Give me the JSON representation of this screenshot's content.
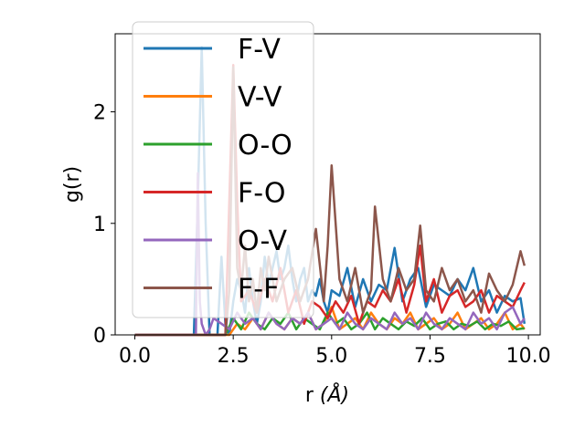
{
  "chart_data": {
    "type": "line",
    "xlabel": "r",
    "xlabel_unit": "(Å)",
    "ylabel": "g(r)",
    "xlim": [
      -0.5,
      10.3
    ],
    "ylim": [
      0,
      2.7
    ],
    "xticks": [
      0.0,
      2.5,
      5.0,
      7.5,
      10.0
    ],
    "xtick_labels": [
      "0.0",
      "2.5",
      "5.0",
      "7.5",
      "10.0"
    ],
    "yticks": [
      0,
      1,
      2
    ],
    "ytick_labels": [
      "0",
      "1",
      "2"
    ],
    "grid": false,
    "legend_position": "top-left",
    "series": [
      {
        "name": "F-V",
        "color": "#1f77b4",
        "x": [
          0,
          1.5,
          1.6,
          1.7,
          1.8,
          1.9,
          2.0,
          2.1,
          2.2,
          2.3,
          2.4,
          2.5,
          2.6,
          2.7,
          2.8,
          2.9,
          3.0,
          3.1,
          3.2,
          3.3,
          3.4,
          3.5,
          3.6,
          3.7,
          3.8,
          3.9,
          4.0,
          4.1,
          4.2,
          4.3,
          4.4,
          4.5,
          4.6,
          4.7,
          4.8,
          4.9,
          5.0,
          5.2,
          5.4,
          5.6,
          5.8,
          6.0,
          6.2,
          6.4,
          6.6,
          6.8,
          7.0,
          7.2,
          7.4,
          7.6,
          7.8,
          8.0,
          8.2,
          8.4,
          8.6,
          8.8,
          9.0,
          9.2,
          9.4,
          9.6,
          9.8,
          9.9
        ],
        "y": [
          0,
          0,
          1.2,
          2.58,
          1.0,
          0,
          0,
          0,
          0.7,
          0.1,
          0,
          0.3,
          0.5,
          0.4,
          0.2,
          0.6,
          0.3,
          0.1,
          0.3,
          0.7,
          0.45,
          0.6,
          0.75,
          0.5,
          0.6,
          0.8,
          0.5,
          0.3,
          0.5,
          0.6,
          0.3,
          0.4,
          0.35,
          0.5,
          0.3,
          0.2,
          0.4,
          0.35,
          0.6,
          0.25,
          0.5,
          0.3,
          0.45,
          0.4,
          0.78,
          0.3,
          0.5,
          0.6,
          0.25,
          0.45,
          0.4,
          0.35,
          0.5,
          0.4,
          0.6,
          0.3,
          0.4,
          0.2,
          0.35,
          0.3,
          0.33,
          0.1
        ]
      },
      {
        "name": "V-V",
        "color": "#ff7f0e",
        "x": [
          0,
          2.4,
          2.6,
          2.8,
          3.0,
          3.2,
          3.4,
          3.6,
          3.8,
          4.0,
          4.2,
          4.4,
          4.6,
          4.8,
          5.0,
          5.2,
          5.4,
          5.6,
          5.8,
          6.0,
          6.2,
          6.4,
          6.6,
          6.8,
          7.0,
          7.2,
          7.4,
          7.6,
          7.8,
          8.0,
          8.2,
          8.4,
          8.6,
          8.8,
          9.0,
          9.2,
          9.4,
          9.6,
          9.8,
          9.9
        ],
        "y": [
          0,
          0,
          0.1,
          0.05,
          0.15,
          0.05,
          0.2,
          0.1,
          0.05,
          0.15,
          0.1,
          0.2,
          0.05,
          0.1,
          0.25,
          0.05,
          0.1,
          0.15,
          0.05,
          0.2,
          0.1,
          0.05,
          0.15,
          0.1,
          0.2,
          0.05,
          0.1,
          0.15,
          0.05,
          0.1,
          0.2,
          0.05,
          0.1,
          0.15,
          0.05,
          0.1,
          0.2,
          0.05,
          0.1,
          0.05
        ]
      },
      {
        "name": "O-O",
        "color": "#2ca02c",
        "x": [
          0,
          2.3,
          2.5,
          2.7,
          2.9,
          3.1,
          3.3,
          3.5,
          3.7,
          3.9,
          4.1,
          4.3,
          4.5,
          4.7,
          4.9,
          5.1,
          5.3,
          5.5,
          5.7,
          5.9,
          6.1,
          6.3,
          6.5,
          6.7,
          6.9,
          7.1,
          7.3,
          7.5,
          7.7,
          7.9,
          8.1,
          8.3,
          8.5,
          8.7,
          8.9,
          9.1,
          9.3,
          9.5,
          9.7,
          9.9
        ],
        "y": [
          0,
          0,
          0.15,
          0.05,
          0.2,
          0.1,
          0.05,
          0.15,
          0.1,
          0.2,
          0.05,
          0.15,
          0.1,
          0.05,
          0.2,
          0.1,
          0.15,
          0.05,
          0.1,
          0.2,
          0.05,
          0.15,
          0.1,
          0.05,
          0.12,
          0.08,
          0.15,
          0.05,
          0.1,
          0.12,
          0.05,
          0.1,
          0.08,
          0.12,
          0.05,
          0.1,
          0.08,
          0.12,
          0.05,
          0.06
        ]
      },
      {
        "name": "F-O",
        "color": "#d62728",
        "x": [
          0,
          2.3,
          2.5,
          2.6,
          2.7,
          2.9,
          3.1,
          3.3,
          3.5,
          3.7,
          3.9,
          4.1,
          4.3,
          4.5,
          4.7,
          4.9,
          5.1,
          5.3,
          5.5,
          5.7,
          5.9,
          6.1,
          6.3,
          6.5,
          6.7,
          6.9,
          7.1,
          7.25,
          7.4,
          7.6,
          7.8,
          8.0,
          8.2,
          8.4,
          8.6,
          8.8,
          9.0,
          9.2,
          9.4,
          9.6,
          9.8,
          9.9
        ],
        "y": [
          0,
          0,
          2.42,
          1.2,
          0.3,
          0.4,
          0.2,
          0.5,
          0.3,
          0.6,
          0.2,
          0.4,
          0.1,
          0.3,
          0.25,
          0.15,
          0.3,
          0.2,
          0.35,
          0.1,
          0.3,
          0.25,
          0.4,
          0.3,
          0.5,
          0.2,
          0.45,
          0.8,
          0.3,
          0.5,
          0.2,
          0.35,
          0.4,
          0.25,
          0.3,
          0.4,
          0.2,
          0.35,
          0.3,
          0.25,
          0.4,
          0.47
        ]
      },
      {
        "name": "O-V",
        "color": "#9467bd",
        "x": [
          0,
          1.55,
          1.6,
          1.65,
          1.7,
          1.8,
          1.9,
          2.0,
          2.2,
          2.4,
          2.6,
          2.8,
          3.0,
          3.2,
          3.4,
          3.6,
          3.8,
          4.0,
          4.2,
          4.4,
          4.6,
          4.8,
          5.0,
          5.2,
          5.4,
          5.6,
          5.8,
          6.0,
          6.2,
          6.4,
          6.6,
          6.8,
          7.0,
          7.2,
          7.4,
          7.6,
          7.8,
          8.0,
          8.2,
          8.4,
          8.6,
          8.8,
          9.0,
          9.2,
          9.4,
          9.6,
          9.8,
          9.9
        ],
        "y": [
          0,
          0,
          1.45,
          0.3,
          0.1,
          0,
          0.05,
          0.15,
          0.1,
          0.05,
          0.2,
          0.1,
          0.15,
          0.05,
          0.2,
          0.1,
          0.05,
          0.15,
          0.1,
          0.2,
          0.05,
          0.1,
          0.15,
          0.05,
          0.2,
          0.1,
          0.05,
          0.15,
          0.1,
          0.05,
          0.2,
          0.1,
          0.15,
          0.05,
          0.2,
          0.1,
          0.05,
          0.15,
          0.1,
          0.05,
          0.2,
          0.1,
          0.15,
          0.05,
          0.2,
          0.25,
          0.1,
          0.15
        ]
      },
      {
        "name": "F-F",
        "color": "#8c564b",
        "x": [
          0,
          2.3,
          2.4,
          2.5,
          2.6,
          2.7,
          2.8,
          2.9,
          3.0,
          3.1,
          3.2,
          3.3,
          3.4,
          3.6,
          3.8,
          4.0,
          4.2,
          4.4,
          4.6,
          4.8,
          4.9,
          5.0,
          5.2,
          5.4,
          5.6,
          5.8,
          6.0,
          6.1,
          6.3,
          6.5,
          6.7,
          6.9,
          7.1,
          7.25,
          7.4,
          7.6,
          7.8,
          8.0,
          8.2,
          8.4,
          8.6,
          8.8,
          9.0,
          9.2,
          9.4,
          9.6,
          9.8,
          9.9
        ],
        "y": [
          0,
          0,
          0.4,
          2.4,
          0.6,
          0.4,
          0.8,
          0.3,
          0.5,
          0.2,
          0.6,
          0.4,
          0.7,
          0.3,
          0.5,
          0.6,
          0.3,
          0.5,
          0.95,
          0.3,
          0.8,
          1.52,
          0.5,
          0.3,
          0.6,
          0.2,
          0.4,
          1.15,
          0.5,
          0.3,
          0.6,
          0.4,
          0.5,
          0.98,
          0.4,
          0.3,
          0.6,
          0.4,
          0.5,
          0.3,
          0.4,
          0.2,
          0.55,
          0.4,
          0.3,
          0.45,
          0.75,
          0.62
        ]
      }
    ]
  }
}
